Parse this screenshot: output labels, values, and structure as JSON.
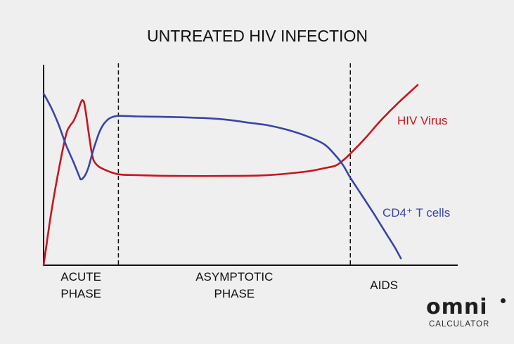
{
  "chart_data": {
    "type": "line",
    "title": "UNTREATED HIV INFECTION",
    "xlabel": "",
    "ylabel": "",
    "xlim": [
      0,
      100
    ],
    "ylim": [
      0,
      100
    ],
    "grid": false,
    "phase_dividers": [
      20,
      82
    ],
    "phases": [
      {
        "lines": [
          "ACUTE",
          "PHASE"
        ],
        "center": 10
      },
      {
        "lines": [
          "ASYMPTOTIC",
          "PHASE"
        ],
        "center": 51
      },
      {
        "lines": [
          "AIDS"
        ],
        "center": 91
      }
    ],
    "series": [
      {
        "name": "HIV Virus",
        "color": "#c8141e",
        "x": [
          0,
          2,
          4,
          6,
          7,
          8,
          9,
          10,
          10.5,
          11,
          12,
          13,
          14,
          16,
          20,
          25,
          35,
          50,
          60,
          70,
          75,
          78,
          80,
          82,
          86,
          90,
          95,
          100
        ],
        "y": [
          0,
          30,
          55,
          76,
          81,
          84,
          89,
          95,
          96,
          93,
          78,
          64,
          59,
          56,
          53,
          52.5,
          52,
          52,
          52.5,
          54.5,
          56.5,
          58,
          61,
          65,
          74,
          84,
          95,
          105
        ]
      },
      {
        "name": "CD4⁺ T cells",
        "color": "#3a44a6",
        "x": [
          0,
          2,
          4,
          6,
          8,
          9.5,
          10,
          11,
          12,
          13,
          14,
          15,
          16,
          17,
          18,
          20,
          25,
          35,
          45,
          50,
          55,
          60,
          65,
          70,
          75,
          78,
          80,
          82,
          85,
          88,
          90,
          92,
          94,
          95.5
        ],
        "y": [
          100,
          92,
          82,
          70,
          60,
          52,
          50,
          52,
          57,
          65,
          72,
          78,
          82,
          84.5,
          86,
          87,
          86.7,
          86.3,
          85.5,
          84.5,
          83,
          81.5,
          79,
          75.5,
          70.5,
          64,
          58.5,
          51,
          41,
          31,
          24,
          17,
          10,
          4
        ]
      }
    ]
  },
  "logo": {
    "name": "omni",
    "sub": "CALCULATOR"
  }
}
